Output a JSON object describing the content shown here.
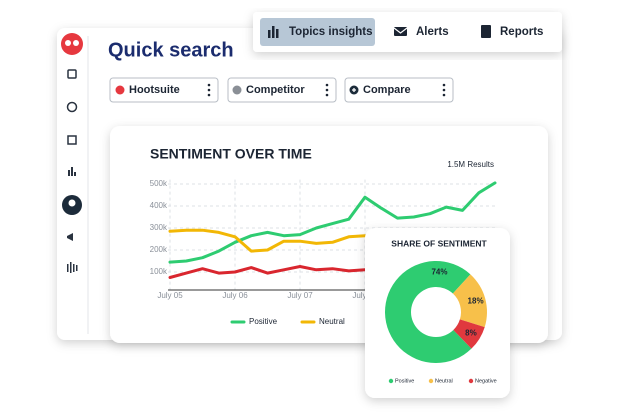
{
  "nav": {
    "tabs": [
      "Topics insights",
      "Alerts",
      "Reports"
    ]
  },
  "search": {
    "title": "Quick search",
    "chips": [
      "Hootsuite",
      "Competitor",
      "Compare"
    ]
  },
  "chart_data": [
    {
      "type": "line",
      "title": "SENTIMENT OVER TIME",
      "annotation": "1.5M Results",
      "x": [
        0,
        0.25,
        0.5,
        0.75,
        1,
        1.25,
        1.5,
        1.75,
        2,
        2.25,
        2.5,
        2.75,
        3,
        3.25,
        3.5,
        3.75,
        4,
        4.25,
        4.5,
        4.75,
        5
      ],
      "xlim": [
        0,
        5
      ],
      "xticks": [
        {
          "value": 0,
          "label": "July 05"
        },
        {
          "value": 1,
          "label": "July 06"
        },
        {
          "value": 2,
          "label": "July 07"
        },
        {
          "value": 3,
          "label": "July 08"
        }
      ],
      "ylim": [
        0,
        520000
      ],
      "yticks": [
        {
          "value": 100000,
          "label": "100k"
        },
        {
          "value": 200000,
          "label": "200k"
        },
        {
          "value": 300000,
          "label": "300k"
        },
        {
          "value": 400000,
          "label": "400k"
        },
        {
          "value": 500000,
          "label": "500k"
        }
      ],
      "grid": true,
      "series": [
        {
          "name": "Positive",
          "color": "#2ecc71",
          "values": [
            145000,
            150000,
            165000,
            195000,
            235000,
            265000,
            280000,
            265000,
            270000,
            300000,
            320000,
            340000,
            440000,
            390000,
            345000,
            350000,
            365000,
            395000,
            380000,
            460000,
            505000
          ]
        },
        {
          "name": "Neutral",
          "color": "#f2b705",
          "values": [
            285000,
            290000,
            290000,
            280000,
            260000,
            195000,
            200000,
            240000,
            240000,
            230000,
            235000,
            260000,
            265000,
            null,
            null,
            null,
            null,
            null,
            null,
            null,
            null
          ]
        },
        {
          "name": "Negative",
          "color": "#d9262e",
          "values": [
            75000,
            95000,
            115000,
            95000,
            100000,
            120000,
            95000,
            110000,
            125000,
            110000,
            115000,
            105000,
            110000,
            null,
            null,
            null,
            null,
            null,
            null,
            null,
            null
          ]
        }
      ]
    },
    {
      "type": "pie",
      "title": "SHARE OF SENTIMENT",
      "donut": true,
      "categories": [
        "Positive",
        "Neutral",
        "Negative"
      ],
      "values": [
        74,
        18,
        8
      ],
      "value_labels": [
        "74%",
        "18%",
        "8%"
      ],
      "colors": [
        "#2ecc71",
        "#f7c04a",
        "#e0393e"
      ]
    }
  ]
}
